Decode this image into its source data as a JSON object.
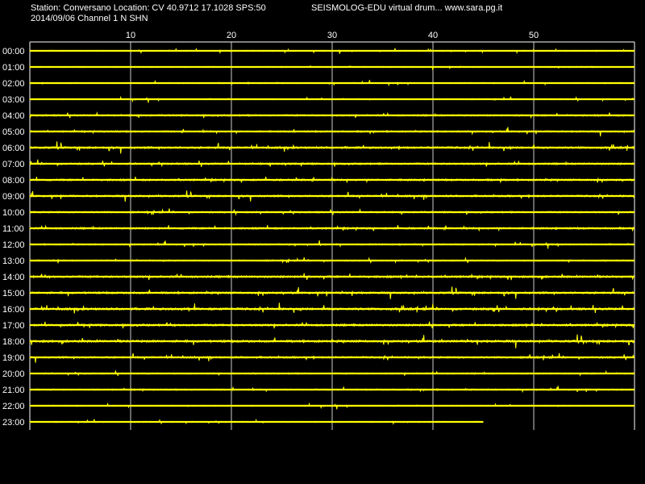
{
  "header": {
    "station_line": "Station: Conversano Location: CV 40.9712 17.1028 SPS:50",
    "date_line": "2014/09/06  Channel 1 N SHN",
    "brand_line": "SEISMOLOG-EDU virtual drum... www.sara.pg.it"
  },
  "colors": {
    "background": "#000000",
    "trace": "#ffff00",
    "grid": "#ffffff",
    "text": "#ffffff"
  },
  "chart_data": {
    "type": "line",
    "title": "",
    "xlabel": "",
    "ylabel": "",
    "x_tick_labels": [
      "10",
      "20",
      "30",
      "40",
      "50"
    ],
    "x_ticks": [
      10,
      20,
      30,
      40,
      50
    ],
    "xlim": [
      0,
      60
    ],
    "grid": true,
    "rows": [
      "00:00",
      "01:00",
      "02:00",
      "03:00",
      "04:00",
      "05:00",
      "06:00",
      "07:00",
      "08:00",
      "09:00",
      "10:00",
      "11:00",
      "12:00",
      "13:00",
      "14:00",
      "15:00",
      "16:00",
      "17:00",
      "18:00",
      "19:00",
      "20:00",
      "21:00",
      "22:00",
      "23:00"
    ],
    "row_end_minute": [
      60,
      60,
      60,
      60,
      60,
      60,
      60,
      60,
      60,
      60,
      60,
      60,
      60,
      60,
      60,
      60,
      60,
      60,
      60,
      60,
      60,
      60,
      60,
      45
    ],
    "row_noise_level": [
      0.5,
      0.5,
      0.5,
      0.5,
      0.7,
      0.7,
      0.9,
      0.8,
      0.8,
      0.8,
      0.7,
      0.8,
      0.6,
      0.6,
      0.9,
      0.9,
      1.0,
      0.9,
      1.0,
      0.8,
      0.6,
      0.6,
      0.5,
      0.5
    ]
  }
}
